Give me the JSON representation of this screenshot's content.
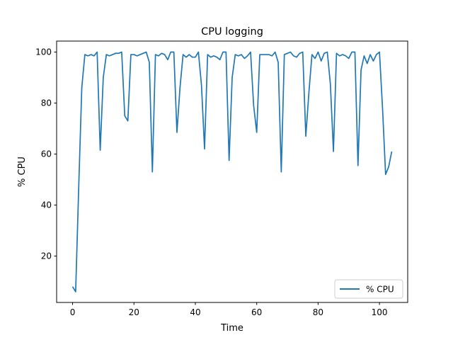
{
  "chart_data": {
    "type": "line",
    "title": "CPU logging",
    "xlabel": "Time",
    "ylabel": "% CPU",
    "xlim": [
      -5.2,
      109.2
    ],
    "ylim": [
      1.8,
      104.3
    ],
    "xticks": [
      0,
      20,
      40,
      60,
      80,
      100
    ],
    "yticks": [
      20,
      40,
      60,
      80,
      100
    ],
    "legend_position": "lower right",
    "grid": false,
    "series": [
      {
        "name": "% CPU",
        "color": "#1f77b4",
        "x": [
          0,
          1,
          2,
          3,
          4,
          5,
          6,
          7,
          8,
          9,
          10,
          11,
          12,
          13,
          14,
          15,
          16,
          17,
          18,
          19,
          20,
          21,
          22,
          23,
          24,
          25,
          26,
          27,
          28,
          29,
          30,
          31,
          32,
          33,
          34,
          35,
          36,
          37,
          38,
          39,
          40,
          41,
          42,
          43,
          44,
          45,
          46,
          47,
          48,
          49,
          50,
          51,
          52,
          53,
          54,
          55,
          56,
          57,
          58,
          59,
          60,
          61,
          62,
          63,
          64,
          65,
          66,
          67,
          68,
          69,
          70,
          71,
          72,
          73,
          74,
          75,
          76,
          77,
          78,
          79,
          80,
          81,
          82,
          83,
          84,
          85,
          86,
          87,
          88,
          89,
          90,
          91,
          92,
          93,
          94,
          95,
          96,
          97,
          98,
          99,
          100,
          101,
          102,
          103,
          104
        ],
        "y": [
          8,
          6,
          47,
          86,
          99,
          98.5,
          99,
          98.5,
          100,
          61.5,
          90,
          99,
          98.5,
          99,
          99.5,
          99.5,
          100,
          75,
          73,
          99,
          99,
          98.5,
          99,
          99.5,
          100,
          96,
          53,
          99,
          98.5,
          99.5,
          99,
          97,
          100,
          100,
          68.5,
          86,
          99,
          98,
          99,
          98,
          98,
          100,
          87,
          62,
          99,
          98,
          98.5,
          98,
          97,
          100,
          100,
          57.5,
          90,
          99,
          98.5,
          99,
          97.5,
          98.5,
          100,
          79,
          68.5,
          99,
          99,
          99,
          99,
          98.5,
          100,
          96,
          53,
          99,
          99.5,
          100,
          98.5,
          98,
          99.5,
          100,
          67,
          84,
          99,
          97.5,
          100,
          96.5,
          99.5,
          100,
          87.5,
          61,
          99.5,
          98.5,
          99,
          98.5,
          97.5,
          100,
          100,
          55.5,
          93,
          98.5,
          95.5,
          99,
          96.5,
          99,
          100,
          78,
          52,
          55,
          61
        ]
      }
    ]
  }
}
